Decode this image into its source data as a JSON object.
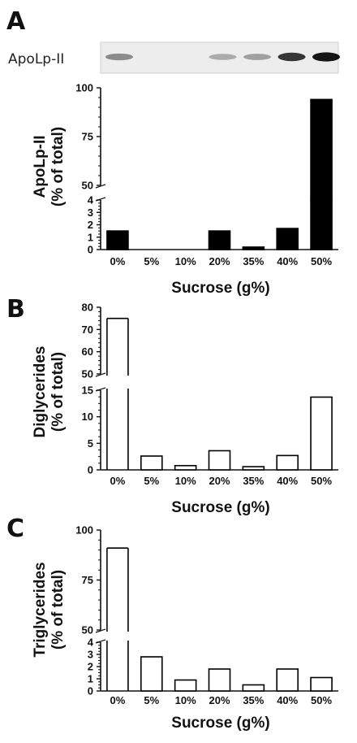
{
  "chart_data": [
    {
      "panel": "A",
      "type": "bar",
      "blot_label": "ApoLp-II",
      "blot_band_intensity": [
        0.45,
        0,
        0,
        0.3,
        0.35,
        0.85,
        1.0
      ],
      "categories": [
        "0%",
        "5%",
        "10%",
        "20%",
        "35%",
        "40%",
        "50%"
      ],
      "values": [
        1.5,
        0,
        0,
        1.5,
        0.2,
        1.7,
        94
      ],
      "ylabel_line1": "ApoLp-II",
      "ylabel_line2": "(% of total)",
      "xlabel": "Sucrose (g%)",
      "lower_ylim": [
        0,
        4
      ],
      "lower_ticks": [
        "0",
        "1",
        "2",
        "3",
        "4"
      ],
      "upper_ylim": [
        50,
        100
      ],
      "upper_ticks": [
        "50",
        "75",
        "100"
      ],
      "bar_fill": "#000000"
    },
    {
      "panel": "B",
      "type": "bar",
      "categories": [
        "0%",
        "5%",
        "10%",
        "20%",
        "35%",
        "40%",
        "50%"
      ],
      "values": [
        75,
        2.6,
        0.8,
        3.6,
        0.6,
        2.7,
        13.7
      ],
      "ylabel_line1": "Diglycerides",
      "ylabel_line2": "(% of total)",
      "xlabel": "Sucrose (g%)",
      "lower_ylim": [
        0,
        15
      ],
      "lower_ticks": [
        "0",
        "5",
        "10",
        "15"
      ],
      "upper_ylim": [
        50,
        80
      ],
      "upper_ticks": [
        "50",
        "60",
        "70",
        "80"
      ],
      "bar_fill": "#ffffff"
    },
    {
      "panel": "C",
      "type": "bar",
      "categories": [
        "0%",
        "5%",
        "10%",
        "20%",
        "35%",
        "40%",
        "50%"
      ],
      "values": [
        91,
        2.8,
        0.9,
        1.8,
        0.5,
        1.8,
        1.1
      ],
      "ylabel_line1": "Triglycerides",
      "ylabel_line2": "(% of total)",
      "xlabel": "Sucrose (g%)",
      "lower_ylim": [
        0,
        4
      ],
      "lower_ticks": [
        "0",
        "1",
        "2",
        "3",
        "4"
      ],
      "upper_ylim": [
        50,
        100
      ],
      "upper_ticks": [
        "50",
        "75",
        "100"
      ],
      "bar_fill": "#ffffff"
    }
  ]
}
